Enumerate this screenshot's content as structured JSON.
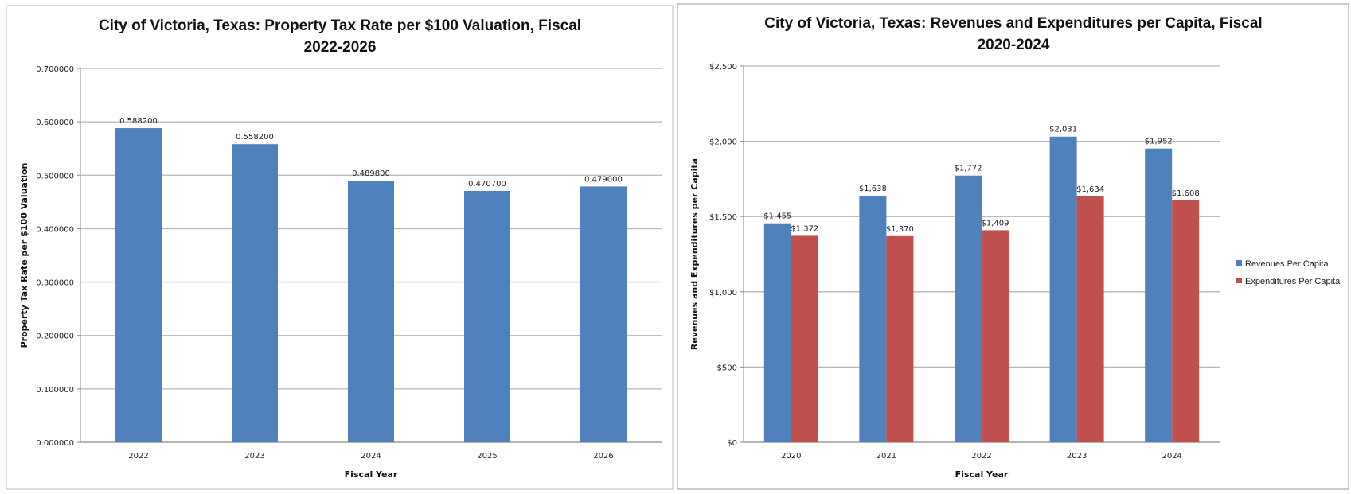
{
  "chart_data": [
    {
      "type": "bar",
      "title_lines": [
        "City of Victoria, Texas: Property Tax Rate per $100 Valuation, Fiscal",
        "2022-2026"
      ],
      "xlabel": "Fiscal Year",
      "ylabel": "Property Tax Rate per $100 Valuation",
      "categories": [
        "2022",
        "2023",
        "2024",
        "2025",
        "2026"
      ],
      "values": [
        0.5882,
        0.5582,
        0.4898,
        0.4707,
        0.479
      ],
      "data_labels": [
        "0.588200",
        "0.558200",
        "0.489800",
        "0.470700",
        "0.479000"
      ],
      "ylim": [
        0,
        0.7
      ],
      "yticks": [
        "0.000000",
        "0.100000",
        "0.200000",
        "0.300000",
        "0.400000",
        "0.500000",
        "0.600000",
        "0.700000"
      ],
      "grid": true,
      "color": "#4F81BD"
    },
    {
      "type": "bar",
      "title_lines": [
        "City of Victoria, Texas: Revenues and Expenditures per Capita, Fiscal",
        "2020-2024"
      ],
      "xlabel": "Fiscal Year",
      "ylabel": "Revenues and Expenditures per Capita",
      "categories": [
        "2020",
        "2021",
        "2022",
        "2023",
        "2024"
      ],
      "series": [
        {
          "name": "Revenues Per Capita",
          "values": [
            1455,
            1638,
            1772,
            2031,
            1952
          ],
          "data_labels": [
            "$1,455",
            "$1,638",
            "$1,772",
            "$2,031",
            "$1,952"
          ],
          "color": "#4F81BD"
        },
        {
          "name": "Expenditures Per Capita",
          "values": [
            1372,
            1370,
            1409,
            1634,
            1608
          ],
          "data_labels": [
            "$1,372",
            "$1,370",
            "$1,409",
            "$1,634",
            "$1,608"
          ],
          "color": "#C0504D"
        }
      ],
      "ylim": [
        0,
        2500
      ],
      "yticks": [
        "$0",
        "$500",
        "$1,000",
        "$1,500",
        "$2,000",
        "$2,500"
      ],
      "grid": true,
      "legend": "right"
    }
  ]
}
